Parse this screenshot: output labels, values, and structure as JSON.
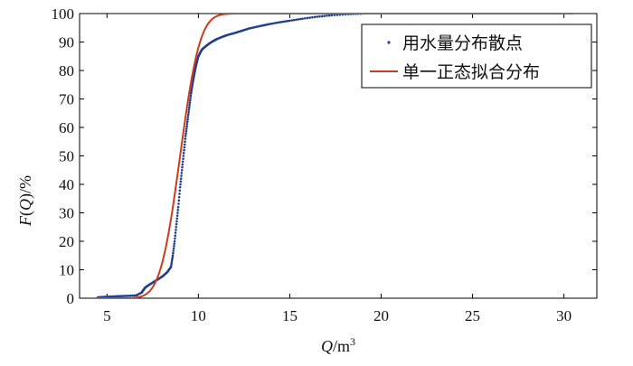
{
  "chart_data": {
    "type": "scatter",
    "xlabel_var": "Q",
    "xlabel_unit": "/m",
    "xlabel_sup": "3",
    "ylabel_fn": "F",
    "ylabel_var": "Q",
    "ylabel_unit": "/%",
    "xlim": [
      3.5,
      31.8
    ],
    "ylim": [
      0,
      100
    ],
    "xticks": [
      5,
      10,
      15,
      20,
      25,
      30
    ],
    "yticks": [
      0,
      10,
      20,
      30,
      40,
      50,
      60,
      70,
      80,
      90,
      100
    ],
    "legend_position": "top-right",
    "series": [
      {
        "name": "用水量分布散点",
        "kind": "scatter",
        "color": "#1f3f8c",
        "x": [
          4.5,
          4.9,
          5.5,
          6.0,
          6.6,
          6.9,
          7.0,
          7.1,
          7.3,
          7.5,
          7.7,
          7.9,
          8.1,
          8.3,
          8.5,
          8.6,
          8.7,
          8.8,
          8.9,
          9.0,
          9.1,
          9.2,
          9.3,
          9.4,
          9.5,
          9.6,
          9.7,
          9.8,
          9.9,
          10.0,
          10.1,
          10.2,
          10.4,
          10.6,
          10.8,
          11.0,
          11.3,
          11.6,
          12.0,
          12.4,
          12.8,
          13.3,
          13.8,
          14.4,
          15.0,
          15.7,
          16.5,
          17.3,
          18.2,
          19.0
        ],
        "y": [
          0.3,
          0.5,
          0.7,
          0.8,
          1.0,
          2.0,
          3.0,
          3.8,
          4.7,
          5.5,
          6.3,
          7.1,
          8.0,
          9.2,
          11.0,
          15.0,
          20.0,
          26.0,
          32.0,
          39.0,
          45.0,
          51.0,
          57.0,
          62.0,
          67.0,
          72.0,
          76.0,
          79.5,
          82.5,
          85.0,
          86.3,
          87.4,
          88.5,
          89.5,
          90.3,
          91.0,
          91.8,
          92.5,
          93.2,
          94.0,
          94.8,
          95.5,
          96.2,
          96.9,
          97.5,
          98.2,
          98.9,
          99.4,
          99.8,
          100.0
        ]
      },
      {
        "name": "单一正态拟合分布",
        "kind": "line",
        "color": "#c93d1c",
        "mean": 9.0,
        "sd": 0.85,
        "x_start": 4.4,
        "x_end": 30.5
      }
    ]
  }
}
